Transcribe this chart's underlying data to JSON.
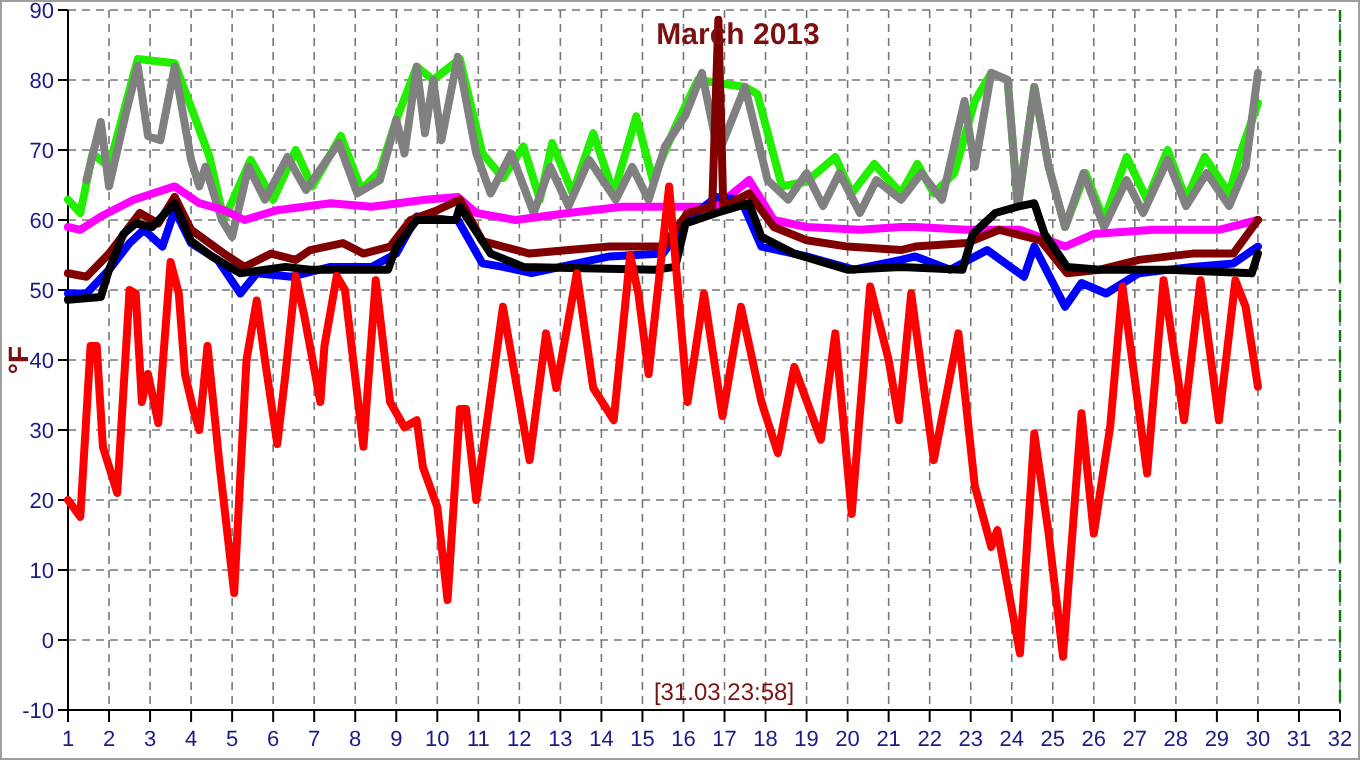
{
  "chart_data": {
    "type": "line",
    "title": "March 2013",
    "ylabel": "°F",
    "annotations": [
      "[31.03 23:58]"
    ],
    "xlim": [
      1,
      32
    ],
    "xticks": [
      1,
      2,
      3,
      4,
      5,
      6,
      7,
      8,
      9,
      10,
      11,
      12,
      13,
      14,
      15,
      16,
      17,
      18,
      19,
      20,
      21,
      22,
      23,
      24,
      25,
      26,
      27,
      28,
      29,
      30,
      31,
      32
    ],
    "ylim": [
      -10,
      90
    ],
    "yticks": [
      -10,
      0,
      10,
      20,
      30,
      40,
      50,
      60,
      70,
      80,
      90
    ],
    "grid": true,
    "marker": "none",
    "line_style": "solid",
    "ref_lines": [
      {
        "axis": "x",
        "value": 32,
        "label": null,
        "color": "#008000",
        "line_style": "dashed"
      }
    ],
    "series": [
      {
        "color": "#22ee00",
        "x": [
          1,
          1.3,
          1.6,
          2,
          2.7,
          3.6,
          4.45,
          4.8,
          5.45,
          6,
          6.55,
          6.95,
          7.65,
          8.15,
          8.6,
          9,
          9.5,
          9.9,
          10.55,
          11.1,
          11.6,
          12.1,
          12.5,
          12.8,
          13.3,
          13.8,
          14.3,
          14.85,
          15.25,
          15.8,
          16.35,
          17.5,
          17.8,
          18.4,
          19,
          19.7,
          20.1,
          20.65,
          21.3,
          21.7,
          22.1,
          22.6,
          23.1,
          23.5,
          23.9,
          24.15,
          24.55,
          24.9,
          25.3,
          25.8,
          26.25,
          26.8,
          27.3,
          27.8,
          28.25,
          28.7,
          29.3,
          29.6,
          30
        ],
        "values": [
          62.9,
          61,
          69.5,
          67.6,
          83,
          82.4,
          69,
          60,
          68.6,
          62.9,
          70,
          64.8,
          72,
          64.3,
          67,
          74.3,
          81.9,
          80,
          83,
          69.5,
          66,
          70.5,
          62.9,
          71,
          63.8,
          72.4,
          63.8,
          74.8,
          65.7,
          73.3,
          80,
          79,
          78,
          64.8,
          65.5,
          69,
          63.8,
          68,
          63.8,
          68,
          63.8,
          66.7,
          77,
          81,
          80,
          62,
          79,
          67.6,
          59,
          66.7,
          60,
          69,
          62.9,
          70,
          62.9,
          69,
          63.8,
          70,
          76.7
        ]
      },
      {
        "color": "#808080",
        "x": [
          1.45,
          1.8,
          2,
          2.4,
          2.7,
          2.95,
          3.25,
          3.6,
          4,
          4.2,
          4.35,
          4.75,
          5,
          5.4,
          5.8,
          6.35,
          6.8,
          7.6,
          8.05,
          8.6,
          9,
          9.2,
          9.5,
          9.7,
          9.9,
          10.1,
          10.5,
          10.95,
          11.3,
          11.8,
          12.35,
          12.75,
          13.2,
          13.7,
          14.35,
          14.75,
          15.15,
          15.55,
          16.05,
          16.45,
          16.85,
          17.5,
          18.05,
          18.55,
          19,
          19.4,
          19.8,
          20.3,
          20.7,
          21.3,
          21.8,
          22.3,
          22.85,
          23.1,
          23.5,
          23.9,
          24.15,
          24.55,
          24.9,
          25.3,
          25.75,
          26.25,
          26.8,
          27.2,
          27.8,
          28.25,
          28.75,
          29.3,
          29.7,
          30
        ],
        "values": [
          65.7,
          74,
          64.8,
          75,
          82,
          72,
          71.4,
          81.9,
          68.6,
          64.8,
          67.6,
          60,
          57.6,
          67.6,
          62.9,
          69,
          64.3,
          71,
          63.8,
          65.7,
          74.3,
          69.5,
          81.9,
          72.4,
          80,
          71.4,
          83.3,
          69.5,
          63.8,
          69.5,
          61,
          67.6,
          62,
          68.6,
          62.9,
          67.6,
          62.9,
          70.5,
          75,
          81,
          69.5,
          79,
          65.7,
          62.9,
          66.7,
          62,
          66.7,
          61,
          65.7,
          62.9,
          66.7,
          62.9,
          77,
          67.6,
          81,
          80,
          62,
          79,
          67.6,
          59,
          66.7,
          59,
          65.7,
          61,
          68.6,
          62,
          66.7,
          62,
          67.6,
          81
        ]
      },
      {
        "color": "#ff00ff",
        "x": [
          1,
          1.3,
          1.8,
          2.6,
          3.6,
          4.2,
          4.8,
          5.3,
          6.1,
          7.4,
          8.4,
          9.7,
          10.5,
          10.95,
          11.9,
          13.2,
          14.5,
          15.8,
          16.8,
          17.6,
          18.2,
          19,
          20.3,
          21.3,
          21.65,
          22.9,
          24.2,
          25.3,
          26,
          27.45,
          29.05,
          30
        ],
        "values": [
          59,
          58.6,
          60.5,
          62.9,
          64.8,
          62.4,
          61.4,
          60,
          61.4,
          62.4,
          61.9,
          62.9,
          63.3,
          61,
          60,
          61,
          61.9,
          61.9,
          61.9,
          65.7,
          60,
          59,
          58.6,
          59,
          59,
          58.6,
          58.6,
          56.2,
          58,
          58.6,
          58.6,
          60
        ]
      },
      {
        "color": "#0000ff",
        "x": [
          1,
          1.45,
          2,
          2.5,
          2.85,
          3.3,
          3.6,
          4,
          4.65,
          5.2,
          5.6,
          6.45,
          7.4,
          8.4,
          9,
          9.5,
          10.3,
          10.5,
          11.1,
          11.6,
          12.3,
          13.4,
          14.2,
          15.5,
          16.1,
          16.8,
          17.4,
          17.9,
          19,
          20.15,
          21.3,
          21.65,
          22.5,
          23.4,
          24.3,
          24.55,
          25.3,
          25.7,
          26.3,
          27.1,
          28.4,
          29.4,
          30
        ],
        "values": [
          49.5,
          49.5,
          52.9,
          56.7,
          58.6,
          56.2,
          61.4,
          56.7,
          54.3,
          49.5,
          52.4,
          51.9,
          53.3,
          53.3,
          55.2,
          60.5,
          60,
          60,
          53.8,
          53.3,
          52.4,
          53.8,
          54.8,
          55.2,
          60,
          63.3,
          62.9,
          56.2,
          54.8,
          52.9,
          54.3,
          54.8,
          52.9,
          55.7,
          51.9,
          56.2,
          47.6,
          51,
          49.5,
          52.4,
          53.3,
          53.8,
          56.2
        ]
      },
      {
        "color": "#800000",
        "x": [
          1,
          1.45,
          2,
          2.75,
          3.2,
          3.6,
          4,
          4.8,
          5.3,
          5.95,
          6.55,
          6.9,
          7.7,
          8.2,
          8.85,
          9.35,
          10,
          10.55,
          11.1,
          11.6,
          12.25,
          13.2,
          14.2,
          15.5,
          16.1,
          16.7,
          16.85,
          16.97,
          17.6,
          18.2,
          19,
          20,
          21.3,
          21.65,
          22.9,
          23.7,
          24.7,
          25.35,
          26.15,
          27.1,
          28.4,
          29.4,
          30
        ],
        "values": [
          52.4,
          51.9,
          55.2,
          61,
          59.5,
          63.3,
          58.6,
          55.2,
          53.3,
          55.2,
          54.3,
          55.7,
          56.7,
          55.2,
          56.2,
          60,
          61.4,
          62.9,
          57,
          56.2,
          55.2,
          55.7,
          56.2,
          56.2,
          61,
          61.9,
          88.6,
          61.9,
          63.8,
          59,
          57.1,
          56.2,
          55.7,
          56.2,
          56.7,
          58.6,
          57.1,
          52.4,
          52.9,
          54.3,
          55.2,
          55.2,
          60
        ]
      },
      {
        "color": "#000000",
        "x": [
          1,
          1.8,
          2,
          2.35,
          2.65,
          3.05,
          3.6,
          4,
          4.5,
          5.2,
          6.3,
          6.9,
          8.8,
          9,
          9.5,
          10.45,
          10.55,
          11.3,
          12.1,
          15.3,
          15.8,
          16.05,
          16.8,
          17.6,
          17.9,
          18.7,
          20,
          21.3,
          22.8,
          23.05,
          23.6,
          24.15,
          24.55,
          24.8,
          25.35,
          26.15,
          27.8,
          29.85,
          30
        ],
        "values": [
          48.6,
          49,
          52.9,
          58,
          59.5,
          59,
          62.4,
          57,
          54.8,
          52.4,
          53.3,
          52.9,
          52.9,
          56.2,
          60,
          60,
          61.9,
          55.2,
          53.3,
          52.9,
          53.3,
          59.5,
          61,
          62.4,
          57.6,
          55.2,
          52.9,
          53.3,
          52.9,
          58,
          61,
          61.9,
          62.4,
          58,
          53.3,
          52.9,
          52.9,
          52.4,
          55.2
        ]
      },
      {
        "color": "#ff0000",
        "x": [
          1,
          1.3,
          1.55,
          1.7,
          1.85,
          2.2,
          2.5,
          2.65,
          2.8,
          2.95,
          3.2,
          3.5,
          3.7,
          3.85,
          4.05,
          4.2,
          4.4,
          4.7,
          5.05,
          5.35,
          5.6,
          5.8,
          6.1,
          6.3,
          6.55,
          6.75,
          7.15,
          7.25,
          7.55,
          7.75,
          7.95,
          8.2,
          8.5,
          8.85,
          9.2,
          9.5,
          9.65,
          10,
          10.25,
          10.55,
          10.7,
          10.95,
          11.6,
          12.25,
          12.65,
          12.9,
          13.4,
          13.8,
          14.3,
          14.7,
          14.9,
          15.15,
          15.65,
          16.1,
          16.5,
          16.95,
          17.4,
          17.9,
          18.3,
          18.7,
          19.35,
          19.7,
          20.1,
          20.55,
          21,
          21.25,
          21.55,
          22.1,
          22.7,
          23.1,
          23.5,
          23.65,
          24.2,
          24.55,
          24.9,
          25.25,
          25.7,
          26,
          26.4,
          26.7,
          27.3,
          27.7,
          28.2,
          28.6,
          29.05,
          29.45,
          29.7,
          30
        ],
        "values": [
          20,
          17.6,
          42,
          42,
          27.6,
          21,
          50,
          49.5,
          34,
          38,
          31,
          54,
          49.5,
          38,
          33,
          30,
          42,
          24.7,
          6.7,
          40,
          48.5,
          40,
          28,
          38,
          52,
          46.6,
          34,
          42,
          52,
          50,
          40,
          27.6,
          51.4,
          34,
          30.4,
          31.4,
          24.7,
          19,
          5.7,
          33,
          33,
          20,
          47.6,
          25.7,
          43.8,
          36,
          52.4,
          36,
          31.4,
          55,
          49.5,
          38,
          64.8,
          34,
          49.5,
          32,
          47.6,
          34,
          26.7,
          39,
          28.6,
          43.8,
          18,
          50.5,
          40,
          31.4,
          49.5,
          25.7,
          43.8,
          22,
          13.3,
          15.7,
          -1.9,
          29.5,
          15.2,
          -2.4,
          32.4,
          15.2,
          30.5,
          50.5,
          23.8,
          51.4,
          31.4,
          51.4,
          31.4,
          51.4,
          47.6,
          36.2
        ]
      }
    ]
  }
}
